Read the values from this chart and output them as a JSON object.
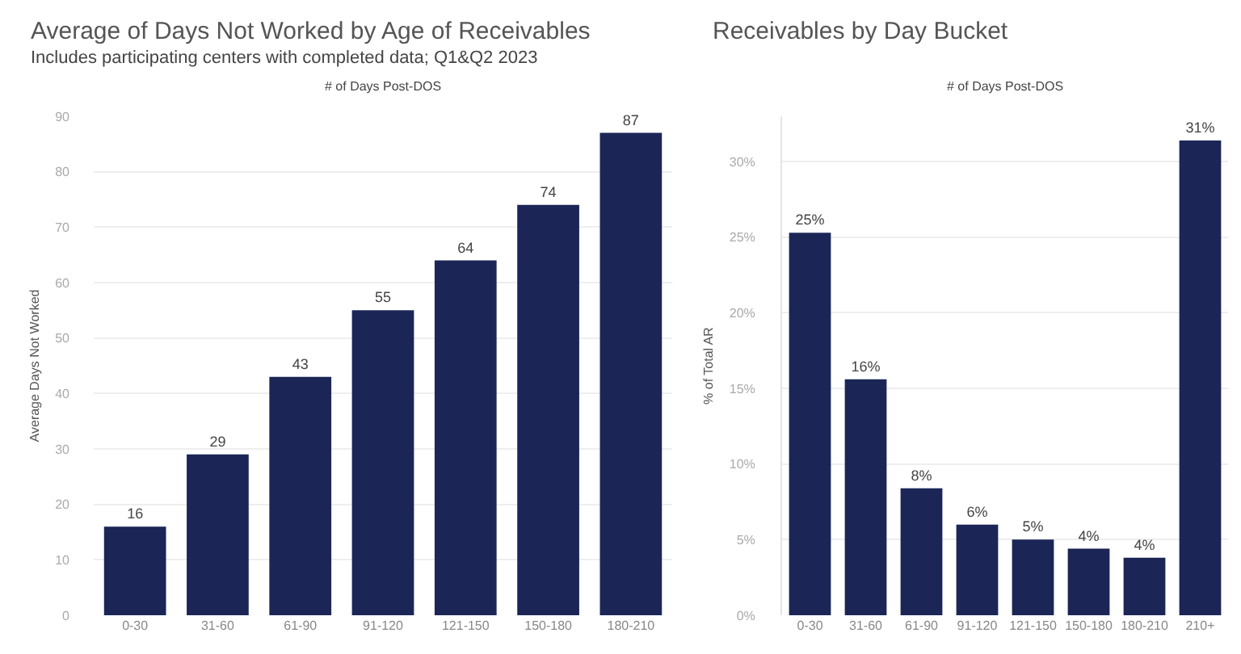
{
  "chart_data": [
    {
      "type": "bar",
      "title": "Average of Days Not Worked by Age of Receivables",
      "subtitle": "Includes participating centers with completed data; Q1&Q2 2023",
      "xlabel": "# of Days Post-DOS",
      "ylabel": "Average Days Not Worked",
      "categories": [
        "0-30",
        "31-60",
        "61-90",
        "91-120",
        "121-150",
        "150-180",
        "180-210"
      ],
      "values": [
        16,
        29,
        43,
        55,
        64,
        74,
        87
      ],
      "color": "#1b2657",
      "ylim": [
        0,
        90
      ],
      "yticks": [
        0,
        10,
        20,
        30,
        40,
        50,
        60,
        70,
        80,
        90
      ],
      "grid": "y",
      "data_labels": true
    },
    {
      "type": "bar",
      "title": "Receivables by Day Bucket",
      "xlabel": "# of Days Post-DOS",
      "ylabel": "% of Total AR",
      "categories": [
        "0-30",
        "31-60",
        "61-90",
        "91-120",
        "121-150",
        "150-180",
        "180-210",
        "210+"
      ],
      "values": [
        25.3,
        15.6,
        8.4,
        6.0,
        5.0,
        4.4,
        3.8,
        31.4
      ],
      "value_labels": [
        "25%",
        "16%",
        "8%",
        "6%",
        "5%",
        "4%",
        "4%",
        "31%"
      ],
      "color": "#1b2657",
      "ylim": [
        0,
        33
      ],
      "yticks": [
        {
          "value": 0,
          "label": "0%"
        },
        {
          "value": 5,
          "label": "5%"
        },
        {
          "value": 10,
          "label": "10%"
        },
        {
          "value": 15,
          "label": "15%"
        },
        {
          "value": 20,
          "label": "20%"
        },
        {
          "value": 25,
          "label": "25%"
        },
        {
          "value": 30,
          "label": "30%"
        }
      ],
      "grid": "y"
    }
  ]
}
